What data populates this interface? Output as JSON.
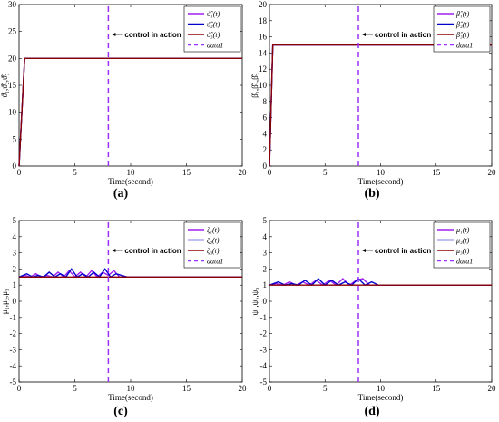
{
  "chart_data": [
    {
      "id": "a",
      "type": "line",
      "caption": "(a)",
      "xlabel": "Time(second)",
      "ylabel": "ϑ̂₁,ϑ̂₂,ϑ̂₃",
      "xlim": [
        0,
        20
      ],
      "ylim": [
        0,
        30
      ],
      "xticks": [
        "0",
        "5",
        "10",
        "15",
        "20"
      ],
      "yticks": [
        "0",
        "5",
        "10",
        "15",
        "20",
        "25",
        "30"
      ],
      "annotation": "control in action",
      "vline_x": 8,
      "legend_position": "top-right",
      "legend": [
        "ϑ̂₁(t)",
        "ϑ̂₂(t)",
        "ϑ̂₃(t)",
        "data1"
      ],
      "series": [
        {
          "name": "ϑ̂₁(t)",
          "color": "#a020f0",
          "x": [
            0,
            0.5,
            20
          ],
          "y": [
            0,
            20,
            20
          ]
        },
        {
          "name": "ϑ̂₂(t)",
          "color": "#0000cc",
          "x": [
            0,
            0.5,
            20
          ],
          "y": [
            0,
            20,
            20
          ]
        },
        {
          "name": "ϑ̂₃(t)",
          "color": "#8b0000",
          "x": [
            0,
            0.5,
            20
          ],
          "y": [
            0,
            20,
            20
          ]
        },
        {
          "name": "data1",
          "color": "#9b30ff",
          "dashed": true,
          "x": [
            8,
            8
          ],
          "y": [
            0,
            30
          ]
        }
      ]
    },
    {
      "id": "b",
      "type": "line",
      "caption": "(b)",
      "xlabel": "Time(second)",
      "ylabel": "β̂₁,β̂₂,β̂₃",
      "xlim": [
        0,
        20
      ],
      "ylim": [
        0,
        20
      ],
      "xticks": [
        "0",
        "5",
        "10",
        "15",
        "20"
      ],
      "yticks": [
        "0",
        "2",
        "4",
        "6",
        "8",
        "10",
        "12",
        "14",
        "16",
        "18",
        "20"
      ],
      "annotation": "control in action",
      "vline_x": 8,
      "legend_position": "top-right",
      "legend": [
        "β̂₁(t)",
        "β̂₂(t)",
        "β̂₃(t)",
        "data1"
      ],
      "series": [
        {
          "name": "β̂₁(t)",
          "color": "#a020f0",
          "x": [
            0,
            0.3,
            20
          ],
          "y": [
            0,
            15,
            15
          ]
        },
        {
          "name": "β̂₂(t)",
          "color": "#0000cc",
          "x": [
            0,
            0.3,
            20
          ],
          "y": [
            0,
            15,
            15
          ]
        },
        {
          "name": "β̂₃(t)",
          "color": "#8b0000",
          "x": [
            0,
            0.3,
            20
          ],
          "y": [
            0,
            15,
            15
          ]
        },
        {
          "name": "data1",
          "color": "#9b30ff",
          "dashed": true,
          "x": [
            8,
            8
          ],
          "y": [
            0,
            20
          ]
        }
      ]
    },
    {
      "id": "c",
      "type": "line",
      "caption": "(c)",
      "xlabel": "Time(second)",
      "ylabel": "μ₁,μ₂,μ₃",
      "xlim": [
        0,
        20
      ],
      "ylim": [
        -5,
        5
      ],
      "xticks": [
        "0",
        "5",
        "10",
        "15",
        "20"
      ],
      "yticks": [
        "-5",
        "-4",
        "-3",
        "-2",
        "-1",
        "0",
        "1",
        "2",
        "3",
        "4",
        "5"
      ],
      "annotation": "control in action",
      "vline_x": 8,
      "legend_position": "top-right",
      "legend": [
        "ζ₁(t)",
        "ζ₂(t)",
        "ζ₃(t)",
        "data1"
      ],
      "series": [
        {
          "name": "ζ₁(t)",
          "color": "#a020f0",
          "x": [
            0,
            0.5,
            1,
            1.5,
            2,
            2.5,
            3,
            3.5,
            4,
            4.5,
            5,
            5.5,
            6,
            6.5,
            7,
            7.5,
            8,
            8.5,
            9,
            9.5,
            10,
            20
          ],
          "y": [
            1.5,
            1.6,
            1.5,
            1.7,
            1.5,
            1.6,
            1.5,
            1.8,
            1.5,
            1.9,
            1.5,
            1.8,
            1.5,
            1.9,
            1.5,
            1.8,
            1.6,
            1.9,
            1.5,
            1.5,
            1.5,
            1.5
          ]
        },
        {
          "name": "ζ₂(t)",
          "color": "#0000cc",
          "x": [
            0,
            0.7,
            1.2,
            1.7,
            2.2,
            2.7,
            3.2,
            3.7,
            4.2,
            4.7,
            5.2,
            5.7,
            6.2,
            6.7,
            7.2,
            7.7,
            8.2,
            8.7,
            9.2,
            9.7,
            10,
            20
          ],
          "y": [
            1.5,
            1.7,
            1.5,
            1.6,
            1.5,
            1.8,
            1.5,
            1.7,
            1.5,
            2.0,
            1.5,
            1.7,
            1.5,
            1.8,
            1.5,
            2.0,
            1.5,
            1.7,
            1.6,
            1.5,
            1.5,
            1.5
          ]
        },
        {
          "name": "ζ₃(t)",
          "color": "#8b0000",
          "x": [
            0,
            20
          ],
          "y": [
            1.5,
            1.5
          ]
        },
        {
          "name": "data1",
          "color": "#9b30ff",
          "dashed": true,
          "x": [
            8,
            8
          ],
          "y": [
            -5,
            5
          ]
        }
      ]
    },
    {
      "id": "d",
      "type": "line",
      "caption": "(d)",
      "xlabel": "Time(second)",
      "ylabel": "ψ₁,ψ₂,ψ₃",
      "xlim": [
        0,
        20
      ],
      "ylim": [
        -5,
        5
      ],
      "xticks": [
        "0",
        "5",
        "10",
        "15",
        "20"
      ],
      "yticks": [
        "-5",
        "-4",
        "-3",
        "-2",
        "-1",
        "0",
        "1",
        "2",
        "3",
        "4",
        "5"
      ],
      "annotation": "control in action",
      "vline_x": 8,
      "legend_position": "top-right",
      "legend": [
        "μ₁(t)",
        "μ₂(t)",
        "μ₃(t)",
        "data1"
      ],
      "series": [
        {
          "name": "μ₁(t)",
          "color": "#a020f0",
          "x": [
            0,
            0.6,
            1.2,
            1.8,
            2.4,
            3,
            3.6,
            4.2,
            4.8,
            5.4,
            6,
            6.6,
            7.2,
            7.8,
            8.4,
            9,
            9.6,
            10,
            20
          ],
          "y": [
            1.0,
            1.1,
            1.0,
            1.2,
            1.0,
            1.2,
            1.0,
            1.3,
            1.0,
            1.3,
            1.0,
            1.4,
            1.0,
            1.3,
            1.4,
            1.0,
            1.0,
            1.0,
            1.0
          ]
        },
        {
          "name": "μ₂(t)",
          "color": "#0000cc",
          "x": [
            0,
            0.8,
            1.4,
            2,
            2.6,
            3.2,
            3.8,
            4.4,
            5,
            5.6,
            6.2,
            6.8,
            7.4,
            8,
            8.6,
            9.2,
            9.8,
            10,
            20
          ],
          "y": [
            1.0,
            1.2,
            1.0,
            1.1,
            1.0,
            1.3,
            1.0,
            1.4,
            1.0,
            1.3,
            1.0,
            1.2,
            1.0,
            1.4,
            1.0,
            1.2,
            1.0,
            1.0,
            1.0
          ]
        },
        {
          "name": "μ₃(t)",
          "color": "#8b0000",
          "x": [
            0,
            20
          ],
          "y": [
            1.0,
            1.0
          ]
        },
        {
          "name": "data1",
          "color": "#9b30ff",
          "dashed": true,
          "x": [
            8,
            8
          ],
          "y": [
            -5,
            5
          ]
        }
      ]
    }
  ]
}
